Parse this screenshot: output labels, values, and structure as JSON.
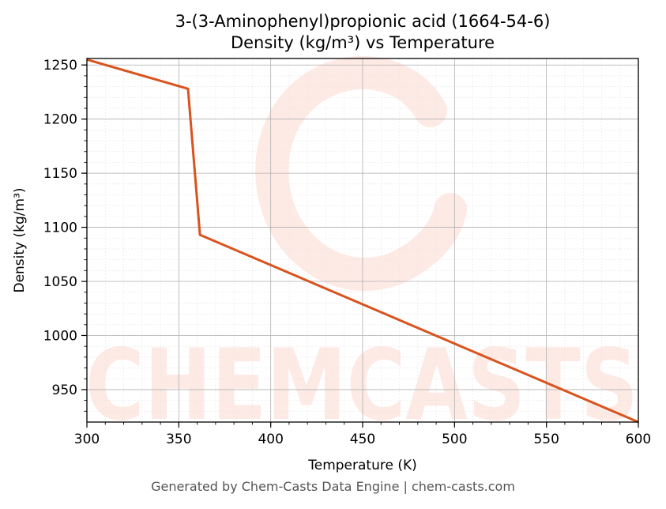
{
  "title_line1": "3-(3-Aminophenyl)propionic acid (1664-54-6)",
  "title_line2": "Density (kg/m³) vs Temperature",
  "footer": "Generated by Chem-Casts Data Engine | chem-casts.com",
  "watermark": {
    "text": "CHEMCASTS",
    "color": "#fde3dc"
  },
  "colors": {
    "line": "#d9531e",
    "major_grid": "#b0b0b0",
    "minor_grid": "#e6e6e6"
  },
  "chart_data": {
    "type": "line",
    "xlabel": "Temperature (K)",
    "ylabel": "Density (kg/m³)",
    "xlim": [
      300,
      600
    ],
    "ylim": [
      920,
      1256
    ],
    "x_ticks": [
      300,
      350,
      400,
      450,
      500,
      550,
      600
    ],
    "y_ticks": [
      950,
      1000,
      1050,
      1100,
      1150,
      1200,
      1250
    ],
    "grid": true,
    "series": [
      {
        "x": [
          300,
          355,
          361.5,
          600
        ],
        "y": [
          1255,
          1228,
          1093,
          920
        ]
      }
    ]
  }
}
